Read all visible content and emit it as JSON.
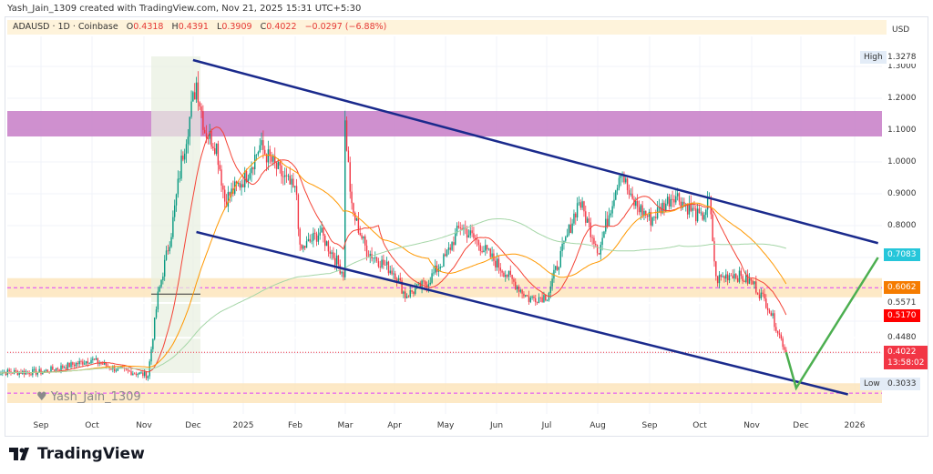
{
  "header": {
    "caption": "Yash_Jain_1309 created with TradingView.com, Nov 21, 2025 15:31 UTC+5:30"
  },
  "legend": {
    "symbol": "ADAUSD · 1D · Coinbase",
    "o_label": "O",
    "o": "0.4318",
    "h_label": "H",
    "h": "0.4391",
    "l_label": "L",
    "l": "0.3909",
    "c_label": "C",
    "c": "0.4022",
    "change": "−0.0297 (−6.88%)"
  },
  "price_axis": {
    "currency": "USD",
    "ticks": [
      "1.3000",
      "1.2000",
      "1.1000",
      "1.0000",
      "0.9000",
      "0.8000"
    ],
    "high_label": "High",
    "high": "1.3278",
    "low_label": "Low",
    "low": "0.3033",
    "markers": [
      {
        "value": "0.7083",
        "color": "#26c6da"
      },
      {
        "value": "0.6062",
        "color": "#f57c00"
      },
      {
        "value": "0.5571",
        "color": "#ffffff"
      },
      {
        "value": "0.5170",
        "color": "#ff0000"
      },
      {
        "value": "0.4480",
        "color": "#ffffff"
      }
    ],
    "last": "0.4022",
    "countdown": "13:58:02",
    "last_color": "#f23645"
  },
  "watermark": "Yash_Jain_1309",
  "footer": {
    "brand": "TradingView"
  },
  "chart_data": {
    "type": "candlestick",
    "symbol": "ADAUSD",
    "interval": "1D",
    "ylim": [
      0.27,
      1.38
    ],
    "grid": true,
    "x_ticks": [
      "Sep",
      "Oct",
      "Nov",
      "Dec",
      "2025",
      "Feb",
      "Mar",
      "Apr",
      "May",
      "Jun",
      "Jul",
      "Aug",
      "Sep",
      "Oct",
      "Nov",
      "Dec",
      "2026"
    ],
    "price_path": [
      [
        "2024-08-05",
        0.34
      ],
      [
        "2024-09-01",
        0.34
      ],
      [
        "2024-09-25",
        0.37
      ],
      [
        "2024-10-01",
        0.38
      ],
      [
        "2024-10-15",
        0.35
      ],
      [
        "2024-11-04",
        0.33
      ],
      [
        "2024-11-10",
        0.58
      ],
      [
        "2024-11-18",
        0.78
      ],
      [
        "2024-11-24",
        1.0
      ],
      [
        "2024-12-03",
        1.25
      ],
      [
        "2024-12-08",
        1.1
      ],
      [
        "2024-12-15",
        1.05
      ],
      [
        "2024-12-20",
        0.88
      ],
      [
        "2025-01-01",
        0.95
      ],
      [
        "2025-01-10",
        1.05
      ],
      [
        "2025-01-20",
        0.98
      ],
      [
        "2025-02-01",
        0.9
      ],
      [
        "2025-02-03",
        0.72
      ],
      [
        "2025-02-15",
        0.78
      ],
      [
        "2025-03-01",
        0.65
      ],
      [
        "2025-03-02",
        1.12
      ],
      [
        "2025-03-06",
        0.85
      ],
      [
        "2025-03-15",
        0.72
      ],
      [
        "2025-04-01",
        0.65
      ],
      [
        "2025-04-07",
        0.58
      ],
      [
        "2025-04-20",
        0.62
      ],
      [
        "2025-05-01",
        0.7
      ],
      [
        "2025-05-10",
        0.8
      ],
      [
        "2025-05-20",
        0.75
      ],
      [
        "2025-06-01",
        0.68
      ],
      [
        "2025-06-20",
        0.57
      ],
      [
        "2025-07-01",
        0.58
      ],
      [
        "2025-07-15",
        0.8
      ],
      [
        "2025-07-20",
        0.88
      ],
      [
        "2025-08-01",
        0.72
      ],
      [
        "2025-08-14",
        0.98
      ],
      [
        "2025-08-20",
        0.88
      ],
      [
        "2025-09-01",
        0.82
      ],
      [
        "2025-09-15",
        0.9
      ],
      [
        "2025-10-01",
        0.82
      ],
      [
        "2025-10-06",
        0.88
      ],
      [
        "2025-10-10",
        0.63
      ],
      [
        "2025-10-20",
        0.65
      ],
      [
        "2025-11-01",
        0.62
      ],
      [
        "2025-11-10",
        0.55
      ],
      [
        "2025-11-21",
        0.4022
      ]
    ],
    "drawings": {
      "resistance_zone": [
        1.08,
        1.16
      ],
      "support_zones": [
        [
          0.575,
          0.635
        ],
        [
          0.24,
          0.305
        ]
      ],
      "channel_upper": [
        [
          "2024-12-01",
          1.32
        ],
        [
          "2026-01-15",
          0.745
        ]
      ],
      "channel_lower": [
        [
          "2024-12-03",
          0.78
        ],
        [
          "2025-12-28",
          0.27
        ]
      ],
      "projection": [
        [
          "2025-11-21",
          0.4022
        ],
        [
          "2025-11-27",
          0.29
        ],
        [
          "2026-01-15",
          0.7
        ]
      ]
    }
  }
}
